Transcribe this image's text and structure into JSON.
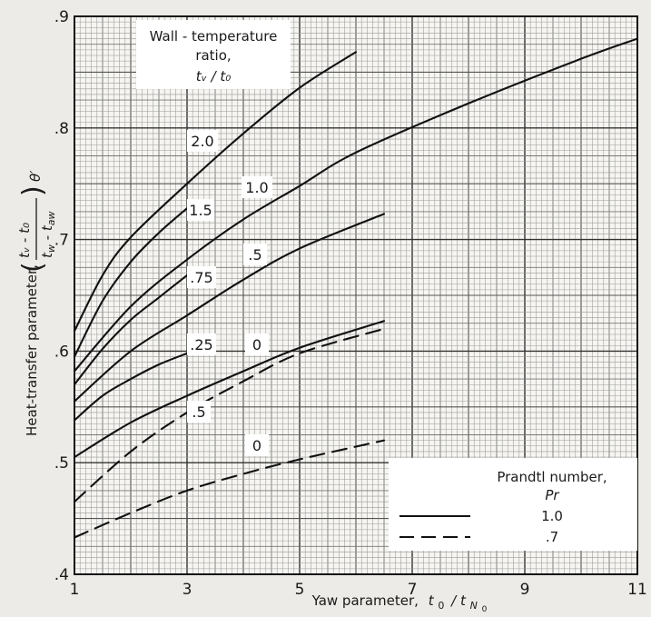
{
  "chart_data": {
    "type": "line",
    "xlabel_prefix": "Yaw parameter,",
    "xlabel_t": "t",
    "xlabel_sub1": "0",
    "xlabel_slash": "/ t",
    "xlabel_sub2": "N",
    "xlabel_sub3": "0",
    "ylabel_text": "Heat-transfer parameter,",
    "ylabel_num": "tᵥ - t₀",
    "ylabel_theta": "θ′",
    "xlim": [
      1,
      11
    ],
    "ylim": [
      0.4,
      0.9
    ],
    "x_ticks": [
      "1",
      "3",
      "5",
      "7",
      "9",
      "11"
    ],
    "x_tick_values": [
      1,
      3,
      5,
      7,
      9,
      11
    ],
    "y_ticks": [
      ".4",
      ".5",
      ".6",
      ".7",
      ".8",
      ".9"
    ],
    "y_tick_values": [
      0.4,
      0.5,
      0.6,
      0.7,
      0.8,
      0.9
    ],
    "grid": true,
    "wall_box": {
      "line1": "Wall - temperature",
      "line2": "ratio,",
      "line3": "tᵥ / t₀"
    },
    "legend": {
      "title": "Prandtl number,",
      "subtitle": "Pr",
      "entries": [
        {
          "label": "1.0",
          "style": "solid"
        },
        {
          "label": ".7",
          "style": "dashed"
        }
      ]
    },
    "curve_labels": [
      "2.0",
      "1.5",
      ".75",
      ".25",
      "1.0",
      ".5",
      "0",
      ".5",
      "0"
    ],
    "series": [
      {
        "name": "2.0",
        "style": "solid",
        "x": [
          1,
          1.5,
          2,
          3,
          4,
          5,
          6
        ],
        "y": [
          0.618,
          0.668,
          0.702,
          0.75,
          0.795,
          0.836,
          0.868
        ]
      },
      {
        "name": "1.5",
        "style": "solid",
        "x": [
          1,
          1.5,
          2,
          2.5,
          3
        ],
        "y": [
          0.595,
          0.645,
          0.68,
          0.706,
          0.728
        ]
      },
      {
        "name": ".75",
        "style": "solid",
        "x": [
          1,
          1.5,
          2,
          2.5,
          3
        ],
        "y": [
          0.57,
          0.602,
          0.628,
          0.648,
          0.668
        ]
      },
      {
        "name": "1.0",
        "style": "solid",
        "x": [
          1,
          2,
          3,
          4,
          5,
          6,
          8,
          10,
          11
        ],
        "y": [
          0.582,
          0.64,
          0.682,
          0.718,
          0.748,
          0.778,
          0.822,
          0.862,
          0.88
        ]
      },
      {
        "name": ".5",
        "style": "solid",
        "x": [
          1,
          2,
          3,
          4,
          5,
          6.5
        ],
        "y": [
          0.555,
          0.6,
          0.632,
          0.664,
          0.692,
          0.723
        ]
      },
      {
        "name": ".25",
        "style": "solid",
        "x": [
          1,
          1.5,
          2,
          2.5,
          3
        ],
        "y": [
          0.538,
          0.56,
          0.575,
          0.588,
          0.598
        ]
      },
      {
        "name": "0",
        "style": "solid",
        "x": [
          1,
          2,
          3,
          4,
          5,
          6.5
        ],
        "y": [
          0.505,
          0.536,
          0.56,
          0.582,
          0.603,
          0.627
        ]
      },
      {
        "name": ".5",
        "style": "dashed",
        "x": [
          1,
          2,
          3,
          4,
          5,
          6.5
        ],
        "y": [
          0.465,
          0.51,
          0.545,
          0.573,
          0.598,
          0.62
        ]
      },
      {
        "name": "0",
        "style": "dashed",
        "x": [
          1,
          2,
          3,
          4,
          5,
          6.5
        ],
        "y": [
          0.433,
          0.455,
          0.475,
          0.49,
          0.503,
          0.52
        ]
      }
    ]
  }
}
